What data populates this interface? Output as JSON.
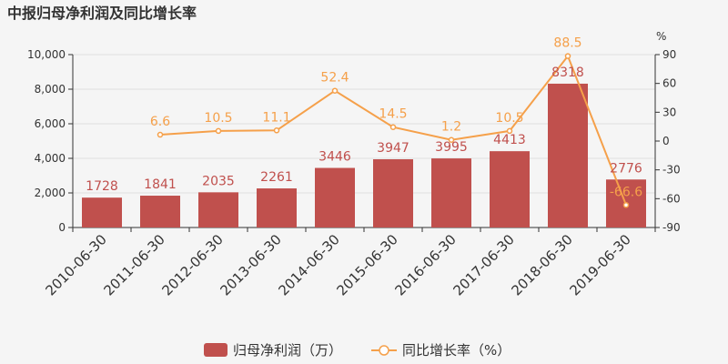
{
  "chart_data": {
    "type": "bar",
    "title": "中报归母净利润及同比增长率",
    "categories": [
      "2010-06-30",
      "2011-06-30",
      "2012-06-30",
      "2013-06-30",
      "2014-06-30",
      "2015-06-30",
      "2016-06-30",
      "2017-06-30",
      "2018-06-30",
      "2019-06-30"
    ],
    "series": [
      {
        "name": "归母净利润（万）",
        "type": "bar",
        "color": "#c0504d",
        "values": [
          1728,
          1841,
          2035,
          2261,
          3446,
          3947,
          3995,
          4413,
          8318,
          2776
        ],
        "labels": [
          "1728",
          "1841",
          "2035",
          "2261",
          "3446",
          "3947",
          "3995",
          "4413",
          "8318",
          "2776"
        ]
      },
      {
        "name": "同比增长率（%）",
        "type": "line",
        "color": "#f5a04a",
        "values": [
          null,
          6.6,
          10.5,
          11.1,
          52.4,
          14.5,
          1.2,
          10.5,
          88.5,
          -66.6
        ],
        "labels": [
          "",
          "6.6",
          "10.5",
          "11.1",
          "52.4",
          "14.5",
          "1.2",
          "10.5",
          "88.5",
          "-66.6"
        ]
      }
    ],
    "y_left": {
      "min": 0,
      "max": 10000,
      "ticks": [
        "0",
        "2,000",
        "4,000",
        "6,000",
        "8,000",
        "10,000"
      ]
    },
    "y_right": {
      "min": -90,
      "max": 90,
      "unit": "%",
      "ticks": [
        "-90",
        "-60",
        "-30",
        "0",
        "30",
        "60",
        "90"
      ]
    },
    "legend": "bottom"
  }
}
